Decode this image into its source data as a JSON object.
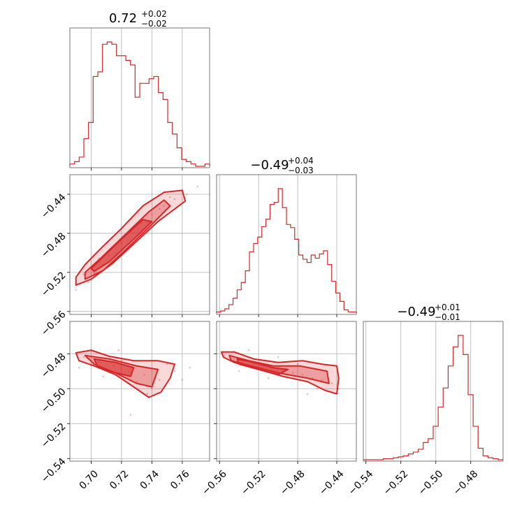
{
  "accent_color": "#d62728",
  "chart_data": {
    "type": "corner",
    "grid": true,
    "titles": [
      {
        "value": "0.72",
        "upper": "+0.02",
        "lower": "−0.02"
      },
      {
        "value": "−0.49",
        "upper": "+0.04",
        "lower": "−0.03"
      },
      {
        "value": "−0.49",
        "upper": "+0.01",
        "lower": "−0.01"
      }
    ],
    "params": [
      {
        "range": [
          0.686,
          0.778
        ],
        "ticks": [
          0.7,
          0.72,
          0.74,
          0.76
        ],
        "tick_labels": [
          "0.70",
          "0.72",
          "0.74",
          "0.76"
        ]
      },
      {
        "range": [
          -0.563,
          -0.42
        ],
        "ticks": [
          -0.56,
          -0.52,
          -0.48,
          -0.44
        ],
        "tick_labels": [
          "−0.56",
          "−0.52",
          "−0.48",
          "−0.44"
        ]
      },
      {
        "range": [
          -0.5415,
          -0.4615
        ],
        "ticks": [
          -0.54,
          -0.52,
          -0.5,
          -0.48
        ],
        "tick_labels": [
          "−0.54",
          "−0.52",
          "−0.50",
          "−0.48"
        ]
      }
    ],
    "histograms": [
      {
        "param": 0,
        "edges_range": [
          0.686,
          0.778
        ],
        "counts": [
          1,
          2,
          4,
          12,
          19,
          39,
          41,
          53,
          54,
          53,
          48,
          48,
          46,
          44,
          30,
          36,
          36,
          38,
          39,
          32,
          29,
          19,
          14,
          8,
          3,
          2,
          1,
          0,
          0,
          1
        ]
      },
      {
        "param": 1,
        "edges_range": [
          -0.563,
          -0.42
        ],
        "counts": [
          1,
          2,
          4,
          8,
          14,
          22,
          29,
          40,
          58,
          66,
          72,
          82,
          89,
          103,
          105,
          118,
          100,
          84,
          81,
          70,
          55,
          51,
          48,
          55,
          52,
          56,
          59,
          46,
          30,
          19,
          11,
          3,
          1,
          1
        ]
      },
      {
        "param": 2,
        "edges_range": [
          -0.5415,
          -0.4615
        ],
        "counts": [
          0,
          0,
          0,
          0,
          1,
          1,
          2,
          3,
          4,
          6,
          8,
          11,
          18,
          22,
          35,
          55,
          75,
          98,
          118,
          130,
          110,
          68,
          35,
          12,
          4,
          2,
          1,
          0
        ]
      }
    ],
    "pairs": [
      {
        "x_param": 0,
        "y_param": 1,
        "trend": "strong positive correlation",
        "contours": [
          [
            [
              0.69,
              -0.533
            ],
            [
              0.7,
              -0.527
            ],
            [
              0.714,
              -0.511
            ],
            [
              0.728,
              -0.491
            ],
            [
              0.744,
              -0.468
            ],
            [
              0.762,
              -0.447
            ],
            [
              0.76,
              -0.436
            ],
            [
              0.748,
              -0.438
            ],
            [
              0.734,
              -0.452
            ],
            [
              0.72,
              -0.475
            ],
            [
              0.708,
              -0.493
            ],
            [
              0.696,
              -0.512
            ],
            [
              0.69,
              -0.525
            ]
          ],
          [
            [
              0.696,
              -0.527
            ],
            [
              0.708,
              -0.518
            ],
            [
              0.722,
              -0.498
            ],
            [
              0.738,
              -0.474
            ],
            [
              0.752,
              -0.452
            ],
            [
              0.748,
              -0.446
            ],
            [
              0.738,
              -0.458
            ],
            [
              0.722,
              -0.482
            ],
            [
              0.706,
              -0.506
            ],
            [
              0.696,
              -0.52
            ]
          ],
          [
            [
              0.702,
              -0.519
            ],
            [
              0.712,
              -0.509
            ],
            [
              0.728,
              -0.486
            ],
            [
              0.74,
              -0.468
            ],
            [
              0.734,
              -0.466
            ],
            [
              0.72,
              -0.486
            ],
            [
              0.706,
              -0.507
            ],
            [
              0.7,
              -0.516
            ]
          ]
        ],
        "points": [
          [
            0.695,
            -0.522
          ],
          [
            0.705,
            -0.506
          ],
          [
            0.712,
            -0.503
          ],
          [
            0.72,
            -0.49
          ],
          [
            0.726,
            -0.478
          ],
          [
            0.733,
            -0.47
          ],
          [
            0.74,
            -0.461
          ],
          [
            0.748,
            -0.452
          ],
          [
            0.755,
            -0.445
          ],
          [
            0.702,
            -0.521
          ],
          [
            0.716,
            -0.5
          ],
          [
            0.731,
            -0.476
          ],
          [
            0.745,
            -0.455
          ],
          [
            0.763,
            -0.44
          ],
          [
            0.69,
            -0.538
          ],
          [
            0.708,
            -0.512
          ],
          [
            0.737,
            -0.469
          ],
          [
            0.752,
            -0.443
          ],
          [
            0.77,
            -0.432
          ],
          [
            0.698,
            -0.53
          ]
        ]
      },
      {
        "x_param": 0,
        "y_param": 2,
        "trend": "negative correlation",
        "contours": [
          [
            [
              0.69,
              -0.4795
            ],
            [
              0.7,
              -0.478
            ],
            [
              0.712,
              -0.4815
            ],
            [
              0.728,
              -0.484
            ],
            [
              0.744,
              -0.484
            ],
            [
              0.755,
              -0.486
            ],
            [
              0.752,
              -0.494
            ],
            [
              0.746,
              -0.502
            ],
            [
              0.738,
              -0.505
            ],
            [
              0.728,
              -0.499
            ],
            [
              0.716,
              -0.492
            ],
            [
              0.702,
              -0.487
            ],
            [
              0.692,
              -0.484
            ]
          ],
          [
            [
              0.696,
              -0.481
            ],
            [
              0.712,
              -0.483
            ],
            [
              0.73,
              -0.487
            ],
            [
              0.744,
              -0.489
            ],
            [
              0.74,
              -0.499
            ],
            [
              0.73,
              -0.497
            ],
            [
              0.716,
              -0.491
            ],
            [
              0.702,
              -0.486
            ]
          ],
          [
            [
              0.702,
              -0.483
            ],
            [
              0.716,
              -0.485
            ],
            [
              0.728,
              -0.488
            ],
            [
              0.726,
              -0.493
            ],
            [
              0.712,
              -0.49
            ],
            [
              0.704,
              -0.487
            ]
          ]
        ],
        "points": [
          [
            0.695,
            -0.482
          ],
          [
            0.705,
            -0.485
          ],
          [
            0.715,
            -0.487
          ],
          [
            0.725,
            -0.49
          ],
          [
            0.735,
            -0.492
          ],
          [
            0.745,
            -0.495
          ],
          [
            0.755,
            -0.49
          ],
          [
            0.7,
            -0.478
          ],
          [
            0.71,
            -0.489
          ],
          [
            0.72,
            -0.484
          ],
          [
            0.73,
            -0.496
          ],
          [
            0.74,
            -0.5
          ],
          [
            0.75,
            -0.486
          ],
          [
            0.765,
            -0.488
          ],
          [
            0.692,
            -0.488
          ],
          [
            0.718,
            -0.478
          ],
          [
            0.737,
            -0.503
          ],
          [
            0.76,
            -0.495
          ],
          [
            0.708,
            -0.493
          ],
          [
            0.726,
            -0.515
          ]
        ]
      },
      {
        "x_param": 1,
        "y_param": 2,
        "trend": "negative correlation",
        "contours": [
          [
            [
              -0.558,
              -0.479
            ],
            [
              -0.545,
              -0.479
            ],
            [
              -0.525,
              -0.483
            ],
            [
              -0.5,
              -0.485
            ],
            [
              -0.475,
              -0.484
            ],
            [
              -0.455,
              -0.486
            ],
            [
              -0.44,
              -0.487
            ],
            [
              -0.438,
              -0.494
            ],
            [
              -0.44,
              -0.503
            ],
            [
              -0.452,
              -0.501
            ],
            [
              -0.47,
              -0.496
            ],
            [
              -0.495,
              -0.493
            ],
            [
              -0.52,
              -0.489
            ],
            [
              -0.545,
              -0.485
            ],
            [
              -0.556,
              -0.482
            ]
          ],
          [
            [
              -0.55,
              -0.481
            ],
            [
              -0.53,
              -0.484
            ],
            [
              -0.505,
              -0.487
            ],
            [
              -0.478,
              -0.487
            ],
            [
              -0.45,
              -0.49
            ],
            [
              -0.448,
              -0.497
            ],
            [
              -0.47,
              -0.494
            ],
            [
              -0.5,
              -0.491
            ],
            [
              -0.528,
              -0.487
            ],
            [
              -0.548,
              -0.484
            ]
          ],
          [
            [
              -0.542,
              -0.483
            ],
            [
              -0.525,
              -0.485
            ],
            [
              -0.505,
              -0.488
            ],
            [
              -0.49,
              -0.489
            ],
            [
              -0.5,
              -0.492
            ],
            [
              -0.52,
              -0.489
            ],
            [
              -0.54,
              -0.486
            ]
          ]
        ],
        "points": [
          [
            -0.555,
            -0.481
          ],
          [
            -0.545,
            -0.483
          ],
          [
            -0.535,
            -0.484
          ],
          [
            -0.525,
            -0.486
          ],
          [
            -0.515,
            -0.487
          ],
          [
            -0.505,
            -0.488
          ],
          [
            -0.495,
            -0.49
          ],
          [
            -0.485,
            -0.491
          ],
          [
            -0.475,
            -0.492
          ],
          [
            -0.465,
            -0.494
          ],
          [
            -0.455,
            -0.495
          ],
          [
            -0.445,
            -0.497
          ],
          [
            -0.438,
            -0.5
          ],
          [
            -0.53,
            -0.478
          ],
          [
            -0.51,
            -0.494
          ],
          [
            -0.48,
            -0.486
          ],
          [
            -0.46,
            -0.5
          ],
          [
            -0.54,
            -0.49
          ],
          [
            -0.5,
            -0.482
          ],
          [
            -0.47,
            -0.503
          ]
        ]
      }
    ]
  }
}
